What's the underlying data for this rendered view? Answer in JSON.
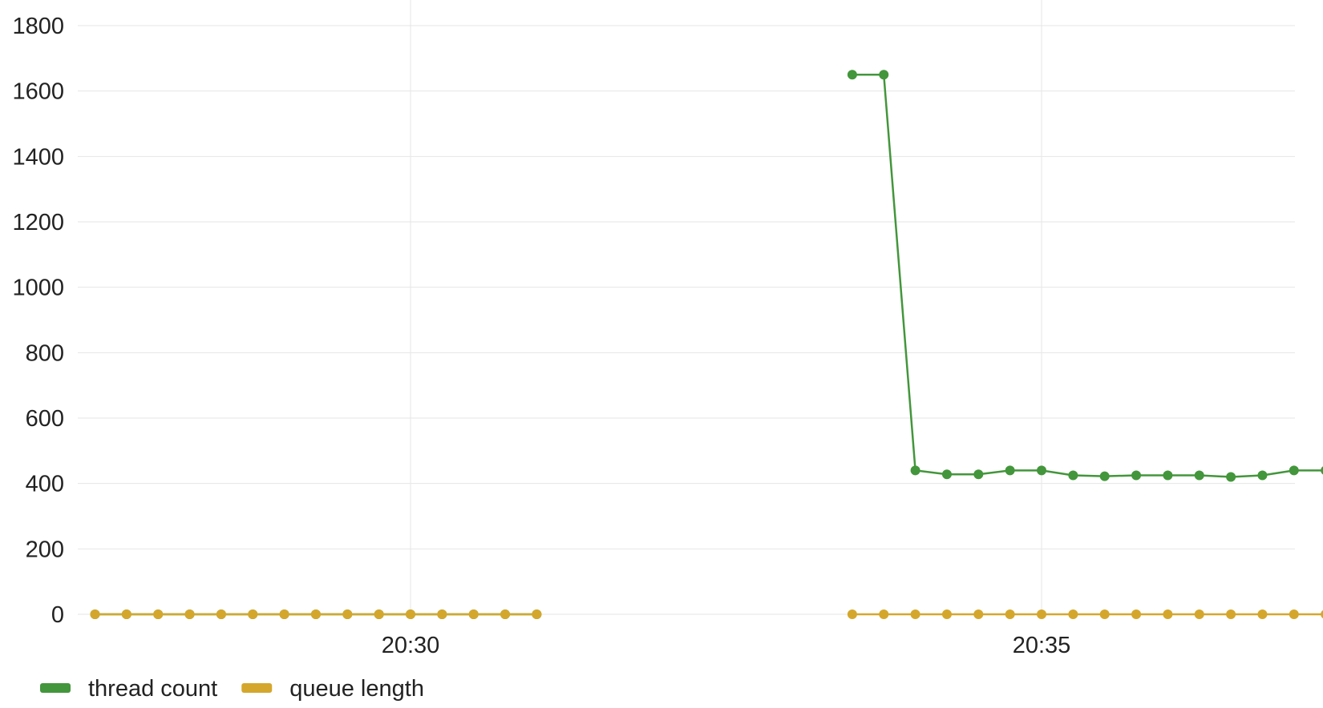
{
  "chart_data": {
    "type": "line",
    "title": "",
    "xlabel": "",
    "ylabel": "",
    "ylim": [
      0,
      1800
    ],
    "yticks": [
      0,
      200,
      400,
      600,
      800,
      1000,
      1200,
      1400,
      1600,
      1800
    ],
    "xlim": [
      "20:27:30",
      "20:37:50"
    ],
    "xticks": [
      {
        "t": "20:30:00",
        "label": "20:30"
      },
      {
        "t": "20:35:00",
        "label": "20:35"
      }
    ],
    "grid": true,
    "legend_position": "bottom-left",
    "series": [
      {
        "name": "thread count",
        "color": "#43963b",
        "points": [
          {
            "t": "20:27:30",
            "v": 0
          },
          {
            "t": "20:27:45",
            "v": 0
          },
          {
            "t": "20:28:00",
            "v": 0
          },
          {
            "t": "20:28:15",
            "v": 0
          },
          {
            "t": "20:28:30",
            "v": 0
          },
          {
            "t": "20:28:45",
            "v": 0
          },
          {
            "t": "20:29:00",
            "v": 0
          },
          {
            "t": "20:29:15",
            "v": 0
          },
          {
            "t": "20:29:30",
            "v": 0
          },
          {
            "t": "20:29:45",
            "v": 0
          },
          {
            "t": "20:30:00",
            "v": 0
          },
          {
            "t": "20:30:15",
            "v": 0
          },
          {
            "t": "20:30:30",
            "v": 0
          },
          {
            "t": "20:30:45",
            "v": 0
          },
          {
            "t": "20:31:00",
            "v": 0
          },
          {
            "t": "20:33:30",
            "v": 1650
          },
          {
            "t": "20:33:45",
            "v": 1650
          },
          {
            "t": "20:34:00",
            "v": 440
          },
          {
            "t": "20:34:15",
            "v": 428
          },
          {
            "t": "20:34:30",
            "v": 428
          },
          {
            "t": "20:34:45",
            "v": 440
          },
          {
            "t": "20:35:00",
            "v": 440
          },
          {
            "t": "20:35:15",
            "v": 425
          },
          {
            "t": "20:35:30",
            "v": 422
          },
          {
            "t": "20:35:45",
            "v": 425
          },
          {
            "t": "20:36:00",
            "v": 425
          },
          {
            "t": "20:36:15",
            "v": 425
          },
          {
            "t": "20:36:30",
            "v": 420
          },
          {
            "t": "20:36:45",
            "v": 425
          },
          {
            "t": "20:37:00",
            "v": 440
          },
          {
            "t": "20:37:15",
            "v": 440
          }
        ]
      },
      {
        "name": "queue length",
        "color": "#d4a72c",
        "points": [
          {
            "t": "20:27:30",
            "v": 0
          },
          {
            "t": "20:27:45",
            "v": 0
          },
          {
            "t": "20:28:00",
            "v": 0
          },
          {
            "t": "20:28:15",
            "v": 0
          },
          {
            "t": "20:28:30",
            "v": 0
          },
          {
            "t": "20:28:45",
            "v": 0
          },
          {
            "t": "20:29:00",
            "v": 0
          },
          {
            "t": "20:29:15",
            "v": 0
          },
          {
            "t": "20:29:30",
            "v": 0
          },
          {
            "t": "20:29:45",
            "v": 0
          },
          {
            "t": "20:30:00",
            "v": 0
          },
          {
            "t": "20:30:15",
            "v": 0
          },
          {
            "t": "20:30:30",
            "v": 0
          },
          {
            "t": "20:30:45",
            "v": 0
          },
          {
            "t": "20:31:00",
            "v": 0
          },
          {
            "t": "20:33:30",
            "v": 0
          },
          {
            "t": "20:33:45",
            "v": 0
          },
          {
            "t": "20:34:00",
            "v": 0
          },
          {
            "t": "20:34:15",
            "v": 0
          },
          {
            "t": "20:34:30",
            "v": 0
          },
          {
            "t": "20:34:45",
            "v": 0
          },
          {
            "t": "20:35:00",
            "v": 0
          },
          {
            "t": "20:35:15",
            "v": 0
          },
          {
            "t": "20:35:30",
            "v": 0
          },
          {
            "t": "20:35:45",
            "v": 0
          },
          {
            "t": "20:36:00",
            "v": 0
          },
          {
            "t": "20:36:15",
            "v": 0
          },
          {
            "t": "20:36:30",
            "v": 0
          },
          {
            "t": "20:36:45",
            "v": 0
          },
          {
            "t": "20:37:00",
            "v": 0
          },
          {
            "t": "20:37:15",
            "v": 0
          }
        ]
      }
    ]
  }
}
